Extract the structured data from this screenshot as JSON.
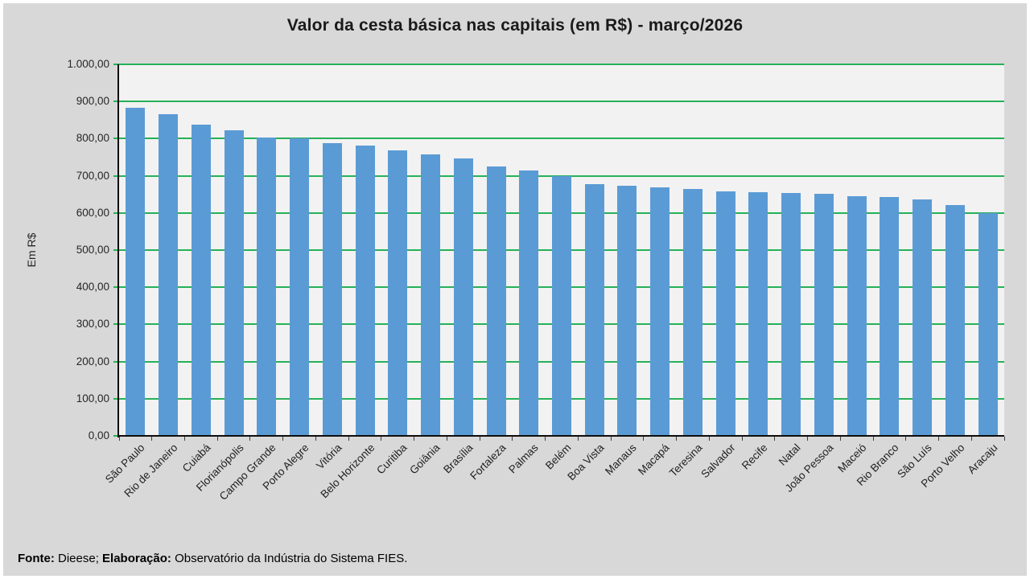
{
  "page": {
    "title": "Valor da cesta básica nas capitais (em R$) - março/2026",
    "footer": {
      "source_label": "Fonte:",
      "source_text": " Dieese; ",
      "elaboration_label": "Elaboração:",
      "elaboration_text": " Observatório da Indústria do Sistema FIES."
    }
  },
  "chart_data": {
    "type": "bar",
    "title": "Valor da cesta básica nas capitais (em R$) - março/2026",
    "xlabel": "",
    "ylabel": "Em R$",
    "ylim": [
      0,
      1000
    ],
    "ytick_interval": 100,
    "ytick_labels": [
      "0,00",
      "100,00",
      "200,00",
      "300,00",
      "400,00",
      "500,00",
      "600,00",
      "700,00",
      "800,00",
      "900,00",
      "1.000,00"
    ],
    "grid": true,
    "legend": false,
    "categories": [
      "São Paulo",
      "Rio de Janeiro",
      "Cuiabá",
      "Florianópolis",
      "Campo Grande",
      "Porto Alegre",
      "Vitória",
      "Belo Horizonte",
      "Curitiba",
      "Goiânia",
      "Brasília",
      "Fortaleza",
      "Palmas",
      "Belém",
      "Boa Vista",
      "Manaus",
      "Macapá",
      "Teresina",
      "Salvador",
      "Recife",
      "Natal",
      "João Pessoa",
      "Maceió",
      "Rio Branco",
      "São Luís",
      "Porto Velho",
      "Aracaju"
    ],
    "values": [
      883,
      865,
      837,
      823,
      804,
      800,
      787,
      782,
      768,
      757,
      746,
      726,
      715,
      700,
      678,
      674,
      669,
      665,
      658,
      655,
      654,
      652,
      644,
      642,
      636,
      621,
      600
    ],
    "colors": {
      "bar": "#5B9BD5",
      "gridline": "#26B159",
      "plot_background": "#F2F2F2",
      "page_background": "#D8D8D8",
      "axis": "#0d0d0d"
    }
  }
}
